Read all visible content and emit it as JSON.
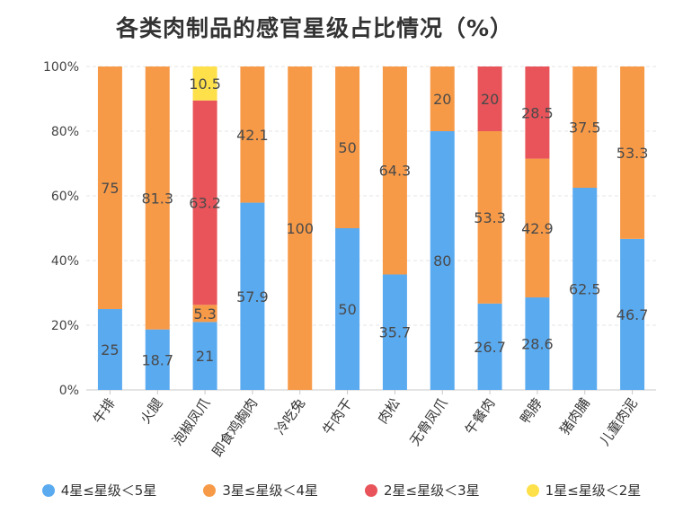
{
  "chart_data": {
    "type": "bar",
    "stacked": true,
    "title": "各类肉制品的感官星级占比情况（%）",
    "xlabel": "",
    "ylabel": "",
    "ylim": [
      0,
      100
    ],
    "yticks": [
      0,
      20,
      40,
      60,
      80,
      100
    ],
    "ytick_labels": [
      "0%",
      "20%",
      "40%",
      "60%",
      "80%",
      "100%"
    ],
    "grid": true,
    "legend_position": "bottom",
    "categories": [
      "牛排",
      "火腿",
      "泡椒凤爪",
      "即食鸡胸肉",
      "冷吃兔",
      "牛肉干",
      "肉松",
      "无骨凤爪",
      "午餐肉",
      "鸭脖",
      "猪肉脯",
      "儿童肉泥"
    ],
    "series": [
      {
        "name": "4星≤星级＜5星",
        "color": "#5aaaf0",
        "values": [
          25,
          18.7,
          21,
          57.9,
          null,
          50,
          35.7,
          80,
          26.7,
          28.6,
          62.5,
          46.7
        ]
      },
      {
        "name": "3星≤星级＜4星",
        "color": "#f79a48",
        "values": [
          75,
          81.3,
          5.3,
          42.1,
          100,
          50,
          64.3,
          20,
          53.3,
          42.9,
          37.5,
          53.3
        ]
      },
      {
        "name": "2星≤星级＜3星",
        "color": "#e8545a",
        "values": [
          null,
          null,
          63.2,
          null,
          null,
          null,
          null,
          null,
          20,
          28.5,
          null,
          null
        ]
      },
      {
        "name": "1星≤星级＜2星",
        "color": "#fde04a",
        "values": [
          null,
          null,
          10.5,
          null,
          null,
          null,
          null,
          null,
          null,
          null,
          null,
          null
        ]
      }
    ]
  }
}
